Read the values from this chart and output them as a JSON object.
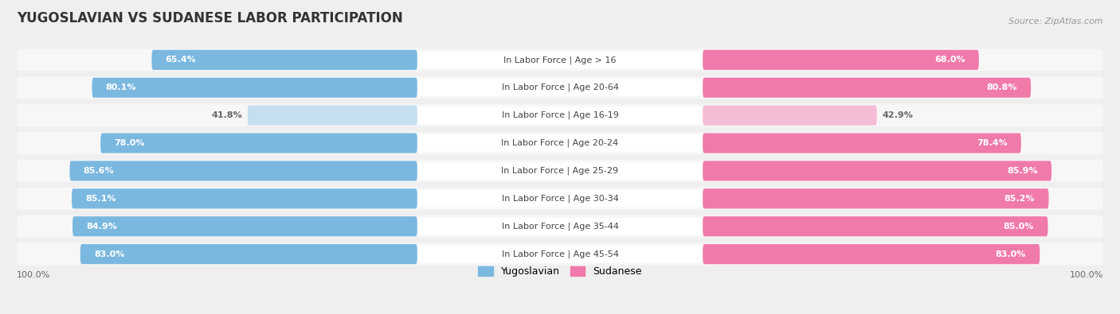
{
  "title": "YUGOSLAVIAN VS SUDANESE LABOR PARTICIPATION",
  "source": "Source: ZipAtlas.com",
  "categories": [
    "In Labor Force | Age > 16",
    "In Labor Force | Age 20-64",
    "In Labor Force | Age 16-19",
    "In Labor Force | Age 20-24",
    "In Labor Force | Age 25-29",
    "In Labor Force | Age 30-34",
    "In Labor Force | Age 35-44",
    "In Labor Force | Age 45-54"
  ],
  "yugoslavian_values": [
    65.4,
    80.1,
    41.8,
    78.0,
    85.6,
    85.1,
    84.9,
    83.0
  ],
  "sudanese_values": [
    68.0,
    80.8,
    42.9,
    78.4,
    85.9,
    85.2,
    85.0,
    83.0
  ],
  "yug_color": "#7ab8e0",
  "yug_color_light": "#c5dff0",
  "sud_color": "#f07aaa",
  "sud_color_light": "#f5bdd5",
  "bg_color": "#efefef",
  "row_bg_color": "#f7f7f7",
  "max_val": 100.0,
  "title_fontsize": 12,
  "label_fontsize": 8,
  "value_fontsize": 8,
  "legend_fontsize": 9,
  "source_fontsize": 8
}
